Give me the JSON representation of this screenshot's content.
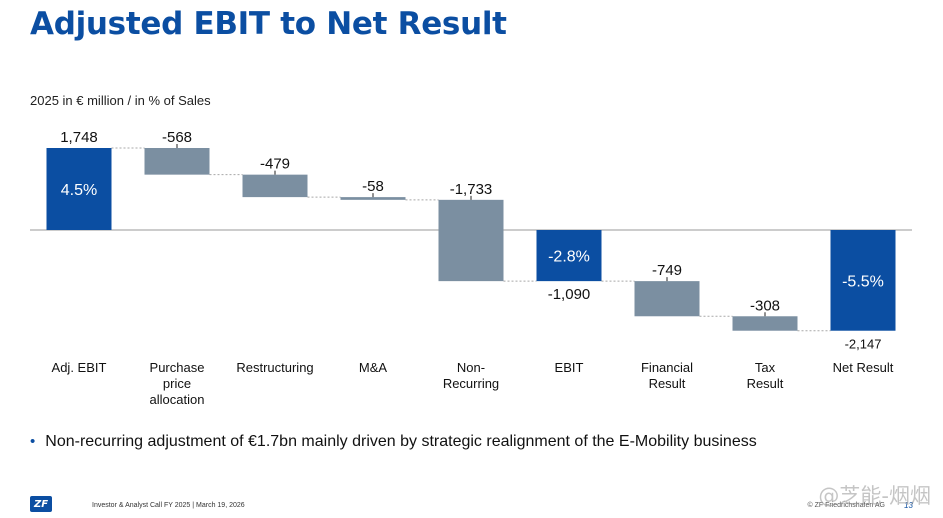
{
  "header": {
    "title": "Adjusted EBIT to Net Result",
    "subtitle": "2025 in € million / in % of Sales"
  },
  "colors": {
    "title": "#0b4ea2",
    "total_bar": "#0b4ea2",
    "delta_bar": "#7b8fa1",
    "connector": "#a8a8a8",
    "axis": "#9a9a9a"
  },
  "chart_data": {
    "type": "bar",
    "subtype": "waterfall",
    "title": "Adjusted EBIT to Net Result",
    "unit_label": "2025 in € million / in % of Sales",
    "ylim": [
      -2300,
      1800
    ],
    "categories": [
      "Adj. EBIT",
      "Purchase price allocation",
      "Restructuring",
      "M&A",
      "Non-Recurring",
      "EBIT",
      "Financial Result",
      "Tax Result",
      "Net Result"
    ],
    "category_lines": [
      [
        "Adj. EBIT"
      ],
      [
        "Purchase",
        "price",
        "allocation"
      ],
      [
        "Restructuring"
      ],
      [
        "M&A"
      ],
      [
        "Non-",
        "Recurring"
      ],
      [
        "EBIT"
      ],
      [
        "Financial",
        "Result"
      ],
      [
        "Tax",
        "Result"
      ],
      [
        "Net Result"
      ]
    ],
    "kinds": [
      "total",
      "delta",
      "delta",
      "delta",
      "delta",
      "total",
      "delta",
      "delta",
      "total"
    ],
    "values": [
      1748,
      -568,
      -479,
      -58,
      -1733,
      -1090,
      -749,
      -308,
      -2147
    ],
    "value_labels": [
      "1,748",
      "-568",
      "-479",
      "-58",
      "-1,733",
      "-1,090",
      "-749",
      "-308",
      "-2,147"
    ],
    "margin_labels": [
      "4.5%",
      "",
      "",
      "",
      "",
      "-2.8%",
      "",
      "",
      "-5.5%"
    ]
  },
  "bullets": [
    "Non-recurring adjustment of €1.7bn mainly driven by strategic realignment of the E-Mobility business"
  ],
  "footer": {
    "logo": "ZF",
    "left_text": "Investor & Analyst Call FY 2025 | March 19, 2026",
    "right_text": "© ZF Friedrichshafen AG",
    "page": "13"
  },
  "watermark": "@芝能-烟烟"
}
